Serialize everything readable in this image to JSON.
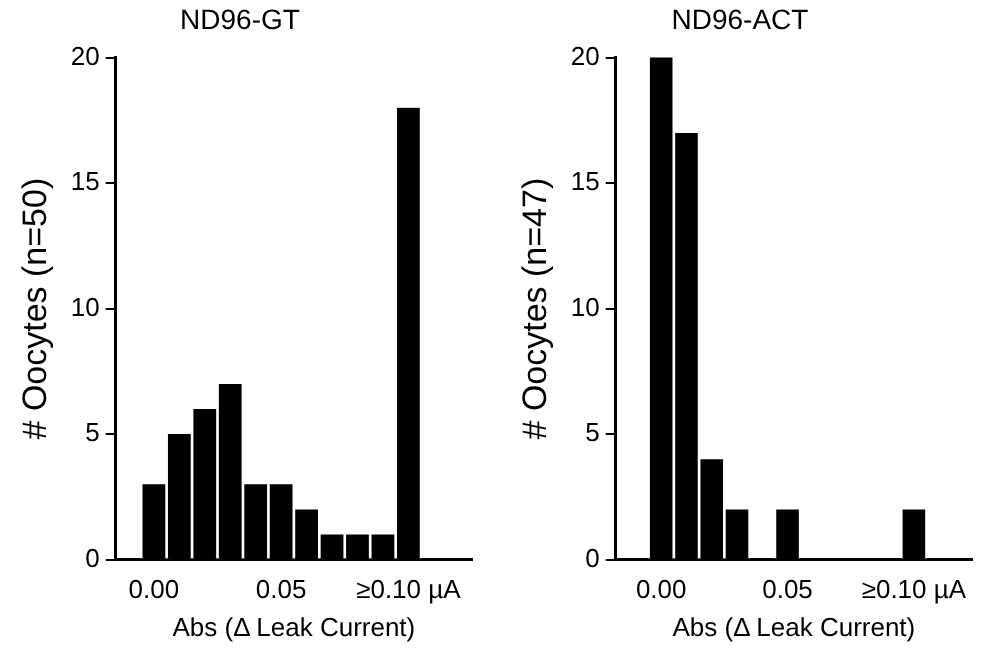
{
  "chart_data": [
    {
      "type": "histogram",
      "title": "ND96-GT",
      "xlabel": "Abs (Δ Leak Current)",
      "ylabel": "# Oocytes (n=50)",
      "color": "#000000",
      "bins": [
        -0.005,
        0.005,
        0.015,
        0.025,
        0.035,
        0.045,
        0.055,
        0.065,
        0.075,
        0.085,
        0.095,
        0.105
      ],
      "values": [
        3,
        5,
        6,
        7,
        3,
        3,
        2,
        1,
        1,
        1,
        18
      ],
      "xlim": [
        -0.015,
        0.125
      ],
      "xticks": [
        {
          "value": 0,
          "label": "0.00"
        },
        {
          "value": 0.05,
          "label": "0.05"
        },
        {
          "value": 0.1,
          "label": "≥0.10 µA"
        }
      ],
      "ylim": [
        0,
        20
      ],
      "yticks": [
        0,
        5,
        10,
        15,
        20
      ]
    },
    {
      "type": "histogram",
      "title": "ND96-ACT",
      "xlabel": "Abs (Δ Leak Current)",
      "ylabel": "# Oocytes (n=47)",
      "color": "#000000",
      "bins": [
        -0.005,
        0.005,
        0.015,
        0.025,
        0.035,
        0.045,
        0.055,
        0.065,
        0.075,
        0.085,
        0.095,
        0.105
      ],
      "values": [
        20,
        17,
        4,
        2,
        0,
        2,
        0,
        0,
        0,
        0,
        2
      ],
      "xlim": [
        -0.018,
        0.123
      ],
      "xticks": [
        {
          "value": 0,
          "label": "0.00"
        },
        {
          "value": 0.05,
          "label": "0.05"
        },
        {
          "value": 0.1,
          "label": "≥0.10 µA"
        }
      ],
      "ylim": [
        0,
        20
      ],
      "yticks": [
        0,
        5,
        10,
        15,
        20
      ]
    }
  ]
}
